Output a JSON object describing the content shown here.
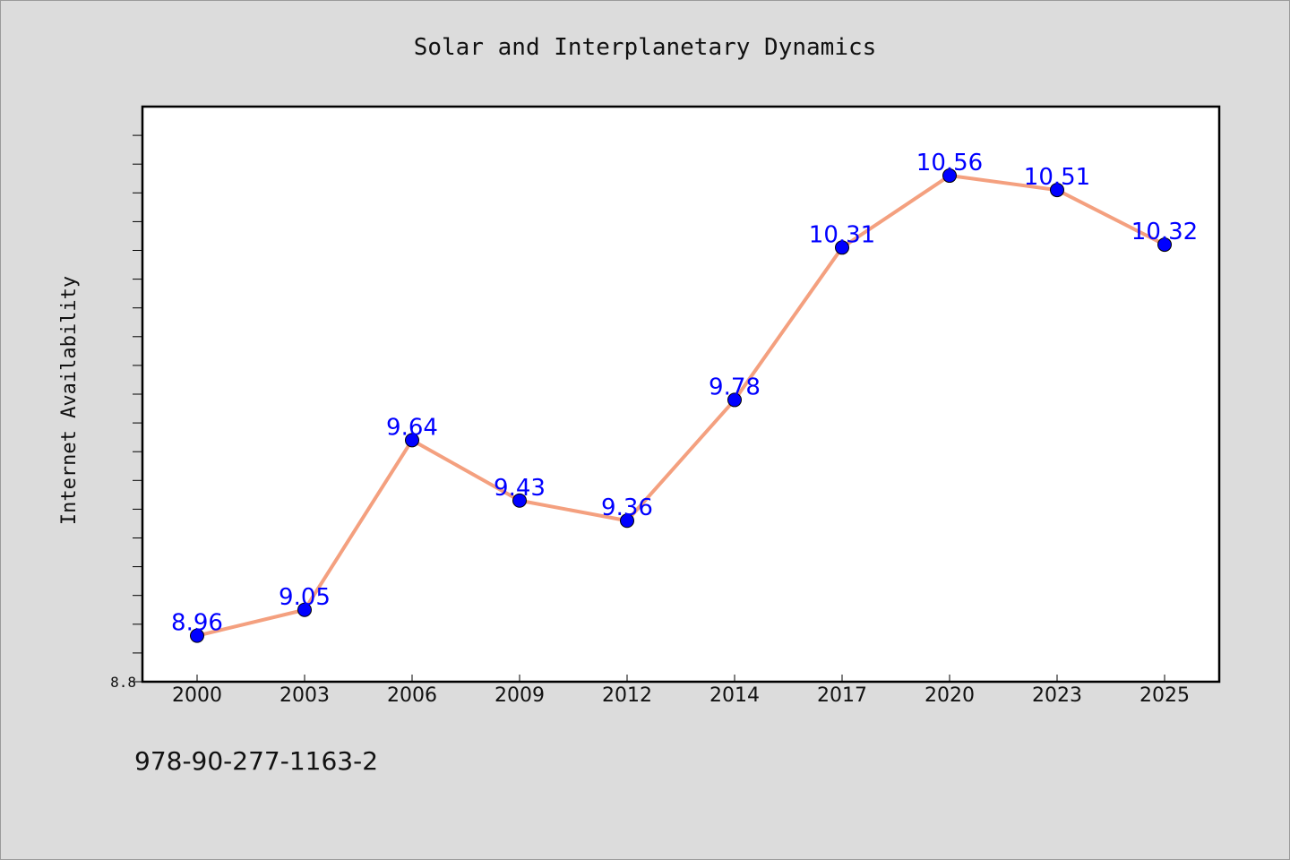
{
  "chart_data": {
    "type": "line",
    "title": "Solar and Interplanetary Dynamics",
    "xlabel": "",
    "ylabel": "Internet Availability",
    "categories": [
      "2000",
      "2003",
      "2006",
      "2009",
      "2012",
      "2014",
      "2017",
      "2020",
      "2023",
      "2025"
    ],
    "series": [
      {
        "values": [
          8.96,
          9.05,
          9.64,
          9.43,
          9.36,
          9.78,
          10.31,
          10.56,
          10.51,
          10.32
        ]
      }
    ],
    "data_labels": [
      "8.96",
      "9.05",
      "9.64",
      "9.43",
      "9.36",
      "9.78",
      "10.31",
      "10.56",
      "10.51",
      "10.32"
    ],
    "y_tick_labels": [
      "8.8"
    ],
    "ylim": [
      8.8,
      10.8
    ],
    "grid": false,
    "legend": "none",
    "line_color": "#f4a07f",
    "marker_color": "#0000ff",
    "label_color": "#0000ff"
  },
  "footer": {
    "code": "978-90-277-1163-2"
  }
}
